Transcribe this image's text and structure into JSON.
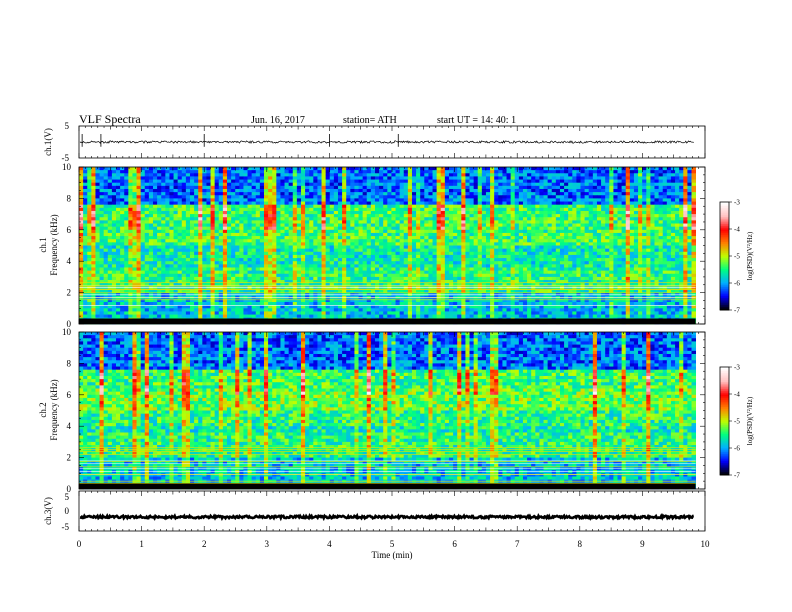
{
  "header": {
    "title": "VLF  Spectra",
    "date": "Jun. 16, 2017",
    "station": "station= ATH",
    "start_ut": "start  UT  =    14: 40: 1"
  },
  "chart_data": [
    {
      "type": "line",
      "panel": "ch1-waveform",
      "ylabel": "ch.1(V)",
      "ylim": [
        -5,
        5
      ],
      "yticks": [
        "5",
        "-5"
      ],
      "xlim": [
        0,
        10
      ],
      "series": [
        {
          "baseline": 0,
          "amplitude": 0.35,
          "spike_times": [
            0.05,
            0.35,
            2.0,
            4.0,
            5.1
          ]
        }
      ]
    },
    {
      "type": "heatmap",
      "panel": "ch1-spectrogram",
      "ylabel": "ch.1\nFrequency  (kHz)",
      "ylim": [
        0,
        10
      ],
      "yticks": [
        "0",
        "2",
        "4",
        "6",
        "8",
        "10"
      ],
      "xlim": [
        0,
        9.85
      ],
      "colorbar": {
        "label": "log(PSD)(V²/Hz)",
        "range": [
          -7,
          -3
        ],
        "ticks": [
          "-3",
          "-4",
          "-5",
          "-6",
          "-7"
        ],
        "colors": [
          "#000000",
          "#0000ff",
          "#00b0ff",
          "#00ff80",
          "#c0ff00",
          "#ff8000",
          "#ff0000",
          "#ffc0c0",
          "#ffffff"
        ]
      }
    },
    {
      "type": "heatmap",
      "panel": "ch2-spectrogram",
      "ylabel": "ch.2\nFrequency  (kHz)",
      "ylim": [
        0,
        10
      ],
      "yticks": [
        "0",
        "2",
        "4",
        "6",
        "8",
        "10"
      ],
      "xlim": [
        0,
        9.85
      ],
      "colorbar": {
        "label": "log(PSD)(V²/Hz)",
        "range": [
          -7,
          -3
        ],
        "ticks": [
          "-3",
          "-4",
          "-5",
          "-6",
          "-7"
        ],
        "colors": [
          "#000000",
          "#0000ff",
          "#00b0ff",
          "#00ff80",
          "#c0ff00",
          "#ff8000",
          "#ff0000",
          "#ffc0c0",
          "#ffffff"
        ]
      }
    },
    {
      "type": "line",
      "panel": "ch3-waveform",
      "ylabel": "ch.3(V)",
      "ylim": [
        -5,
        5
      ],
      "yticks": [
        "5",
        "0",
        "-5"
      ],
      "xlim": [
        0,
        10
      ],
      "series": [
        {
          "baseline": -1.5,
          "amplitude": 0.3
        }
      ]
    }
  ],
  "x_axis": {
    "label": "Time  (min)",
    "ticks": [
      "0",
      "1",
      "2",
      "3",
      "4",
      "5",
      "6",
      "7",
      "8",
      "9",
      "10"
    ],
    "range": [
      0,
      10
    ]
  }
}
